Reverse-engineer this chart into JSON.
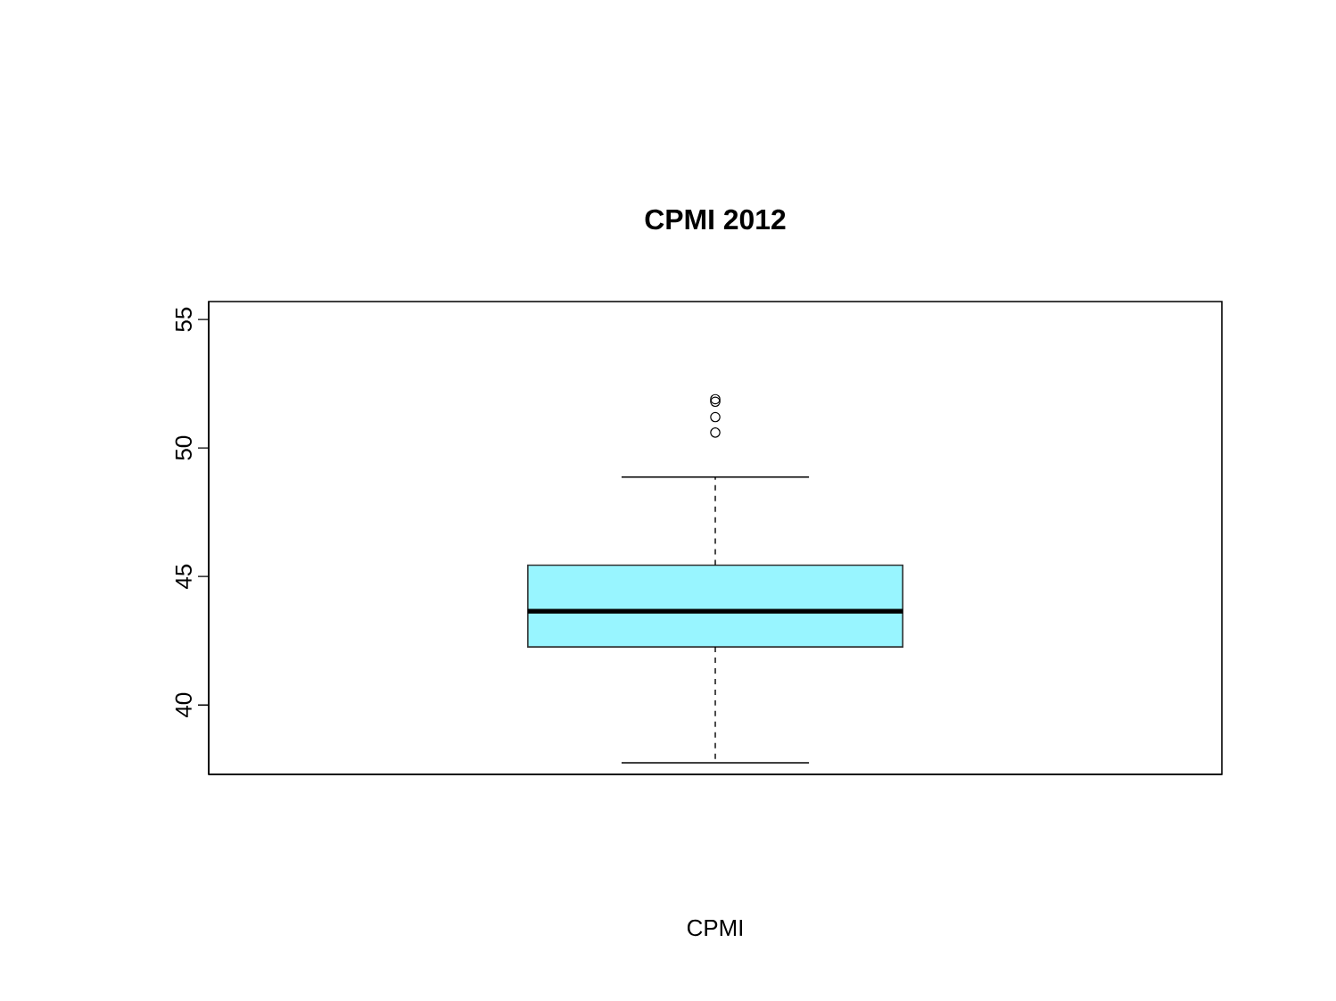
{
  "chart_data": {
    "type": "box",
    "title": "CPMI 2012",
    "annotations": [
      "CPMI"
    ],
    "categories": [
      null
    ],
    "color": "#98f5ff",
    "boxes": [
      {
        "low": 37.75,
        "q1": 42.26,
        "median": 43.65,
        "q3": 45.44,
        "high": 48.87,
        "outliers": [
          51.9,
          51.8,
          51.2,
          50.6
        ]
      }
    ],
    "ylim": [
      37.3,
      55.7
    ],
    "yticks": [
      40,
      45,
      50,
      55
    ],
    "tick_labels": "y"
  }
}
